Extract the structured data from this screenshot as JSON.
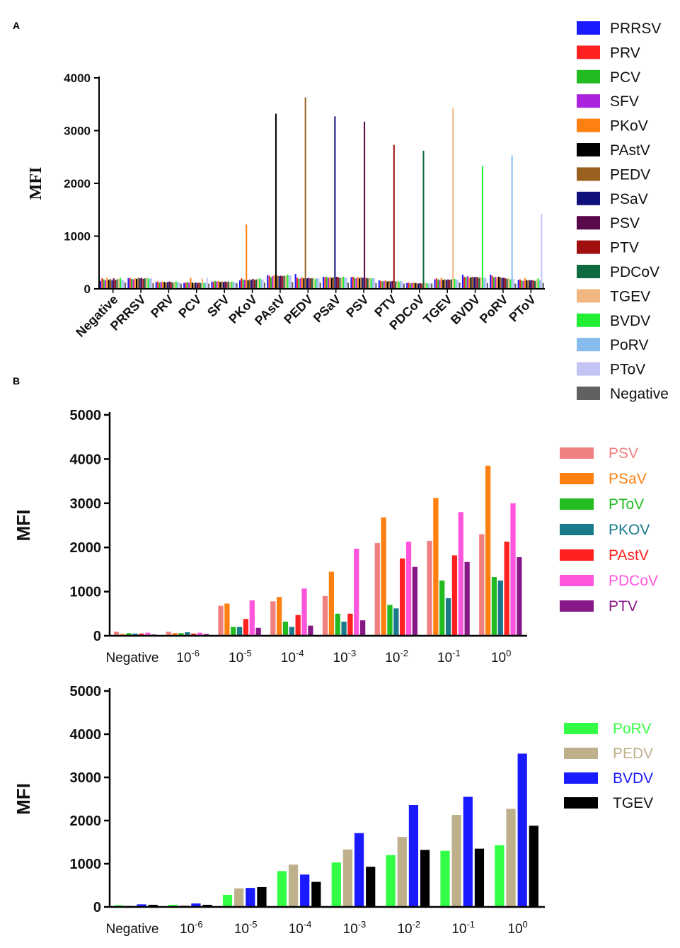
{
  "panel_labels": {
    "a": "A",
    "b": "B"
  },
  "chart_data": [
    {
      "id": "A",
      "type": "bar",
      "title": "",
      "xlabel": "",
      "ylabel": "MFI",
      "ylim": [
        0,
        4000
      ],
      "yticks": [
        0,
        1000,
        2000,
        3000,
        4000
      ],
      "categories": [
        "Negative",
        "PRRSV",
        "PRV",
        "PCV",
        "SFV",
        "PKoV",
        "PAstV",
        "PEDV",
        "PSaV",
        "PSV",
        "PTV",
        "PDCoV",
        "TGEV",
        "BVDV",
        "PoRV",
        "PToV"
      ],
      "legend_position": "right",
      "series": [
        {
          "name": "PRRSV",
          "color": "#1a1aff",
          "values": [
            150,
            200,
            130,
            110,
            140,
            160,
            260,
            280,
            230,
            220,
            160,
            110,
            180,
            270,
            270,
            170
          ]
        },
        {
          "name": "PRV",
          "color": "#ff2020",
          "values": [
            200,
            210,
            140,
            120,
            130,
            200,
            250,
            210,
            220,
            230,
            150,
            120,
            200,
            230,
            250,
            180
          ]
        },
        {
          "name": "PCV",
          "color": "#22bb22",
          "values": [
            180,
            190,
            120,
            130,
            150,
            180,
            220,
            190,
            230,
            210,
            140,
            100,
            180,
            220,
            220,
            160
          ]
        },
        {
          "name": "SFV",
          "color": "#aa22dd",
          "values": [
            160,
            180,
            130,
            120,
            140,
            170,
            240,
            200,
            210,
            200,
            150,
            110,
            170,
            240,
            230,
            150
          ]
        },
        {
          "name": "PKoV",
          "color": "#ff8010",
          "values": [
            210,
            200,
            140,
            210,
            150,
            1220,
            260,
            220,
            220,
            230,
            160,
            120,
            210,
            210,
            220,
            200
          ]
        },
        {
          "name": "PAstV",
          "color": "#000000",
          "values": [
            170,
            190,
            130,
            120,
            130,
            160,
            3320,
            200,
            210,
            200,
            140,
            110,
            170,
            220,
            230,
            160
          ]
        },
        {
          "name": "PEDV",
          "color": "#9a6020",
          "values": [
            190,
            210,
            120,
            110,
            140,
            180,
            250,
            3630,
            220,
            220,
            150,
            110,
            180,
            230,
            220,
            170
          ]
        },
        {
          "name": "PSaV",
          "color": "#10107a",
          "values": [
            160,
            200,
            130,
            120,
            130,
            170,
            240,
            200,
            3270,
            210,
            140,
            100,
            170,
            220,
            210,
            160
          ]
        },
        {
          "name": "PSV",
          "color": "#5a0a4a",
          "values": [
            200,
            210,
            140,
            110,
            140,
            190,
            250,
            210,
            230,
            3170,
            150,
            110,
            180,
            230,
            210,
            170
          ]
        },
        {
          "name": "PTV",
          "color": "#a01010",
          "values": [
            170,
            190,
            130,
            120,
            130,
            170,
            240,
            200,
            220,
            210,
            2730,
            100,
            170,
            220,
            200,
            160
          ]
        },
        {
          "name": "PDCoV",
          "color": "#106a40",
          "values": [
            180,
            200,
            120,
            110,
            140,
            180,
            250,
            200,
            210,
            200,
            140,
            2620,
            180,
            210,
            190,
            150
          ]
        },
        {
          "name": "TGEV",
          "color": "#f0b880",
          "values": [
            190,
            210,
            130,
            200,
            130,
            190,
            250,
            210,
            220,
            210,
            150,
            110,
            3430,
            220,
            200,
            180
          ]
        },
        {
          "name": "BVDV",
          "color": "#22ee33",
          "values": [
            210,
            200,
            140,
            110,
            140,
            200,
            270,
            190,
            230,
            200,
            140,
            110,
            190,
            2330,
            180,
            200
          ]
        },
        {
          "name": "PoRV",
          "color": "#88bbee",
          "values": [
            170,
            190,
            130,
            120,
            130,
            180,
            260,
            200,
            210,
            200,
            150,
            100,
            180,
            210,
            2530,
            160
          ]
        },
        {
          "name": "PToV",
          "color": "#c4c4f4",
          "values": [
            160,
            200,
            120,
            210,
            120,
            180,
            250,
            200,
            220,
            200,
            140,
            110,
            170,
            200,
            190,
            1420
          ]
        },
        {
          "name": "Negative",
          "color": "#606060",
          "values": [
            120,
            110,
            100,
            100,
            110,
            120,
            130,
            120,
            120,
            110,
            100,
            100,
            120,
            110,
            100,
            110
          ]
        }
      ]
    },
    {
      "id": "B-top",
      "type": "bar",
      "title": "",
      "xlabel": "",
      "ylabel": "MFI",
      "ylim": [
        0,
        5000
      ],
      "yticks": [
        0,
        1000,
        2000,
        3000,
        4000,
        5000
      ],
      "categories": [
        {
          "base": "Negative",
          "exp": ""
        },
        {
          "base": "10",
          "exp": "-6"
        },
        {
          "base": "10",
          "exp": "-5"
        },
        {
          "base": "10",
          "exp": "-4"
        },
        {
          "base": "10",
          "exp": "-3"
        },
        {
          "base": "10",
          "exp": "-2"
        },
        {
          "base": "10",
          "exp": "-1"
        },
        {
          "base": "10",
          "exp": "0"
        }
      ],
      "legend_position": "right",
      "series": [
        {
          "name": "PSV",
          "color": "#f08080",
          "values": [
            90,
            90,
            680,
            780,
            900,
            2100,
            2150,
            2300
          ]
        },
        {
          "name": "PSaV",
          "color": "#ff8010",
          "values": [
            40,
            60,
            730,
            880,
            1450,
            2680,
            3120,
            3850
          ]
        },
        {
          "name": "PToV",
          "color": "#22bb22",
          "values": [
            60,
            60,
            200,
            320,
            500,
            700,
            1250,
            1330
          ]
        },
        {
          "name": "PKOV",
          "color": "#1a7a8a",
          "values": [
            50,
            80,
            200,
            200,
            320,
            620,
            850,
            1250
          ]
        },
        {
          "name": "PAstV",
          "color": "#ff2020",
          "values": [
            50,
            50,
            380,
            470,
            500,
            1750,
            1820,
            2130
          ]
        },
        {
          "name": "PDCoV",
          "color": "#ff55dd",
          "values": [
            70,
            70,
            800,
            1070,
            1970,
            2130,
            2800,
            3000
          ]
        },
        {
          "name": "PTV",
          "color": "#881888",
          "values": [
            30,
            40,
            180,
            230,
            350,
            1560,
            1670,
            1780
          ]
        }
      ]
    },
    {
      "id": "B-bottom",
      "type": "bar",
      "title": "",
      "xlabel": "",
      "ylabel": "MFI",
      "ylim": [
        0,
        5000
      ],
      "yticks": [
        0,
        1000,
        2000,
        3000,
        4000,
        5000
      ],
      "categories": [
        {
          "base": "Negative",
          "exp": ""
        },
        {
          "base": "10",
          "exp": "-6"
        },
        {
          "base": "10",
          "exp": "-5"
        },
        {
          "base": "10",
          "exp": "-4"
        },
        {
          "base": "10",
          "exp": "-3"
        },
        {
          "base": "10",
          "exp": "-2"
        },
        {
          "base": "10",
          "exp": "-1"
        },
        {
          "base": "10",
          "exp": "0"
        }
      ],
      "legend_position": "right",
      "series": [
        {
          "name": "PoRV",
          "color": "#33ff44",
          "values": [
            40,
            50,
            280,
            830,
            1030,
            1200,
            1300,
            1430
          ]
        },
        {
          "name": "PEDV",
          "color": "#bdb08a",
          "values": [
            30,
            40,
            430,
            980,
            1330,
            1620,
            2130,
            2270
          ]
        },
        {
          "name": "BVDV",
          "color": "#1a1aff",
          "values": [
            60,
            80,
            440,
            750,
            1710,
            2360,
            2550,
            3550
          ]
        },
        {
          "name": "TGEV",
          "color": "#000000",
          "values": [
            50,
            50,
            460,
            580,
            930,
            1320,
            1350,
            1880
          ]
        }
      ]
    }
  ]
}
